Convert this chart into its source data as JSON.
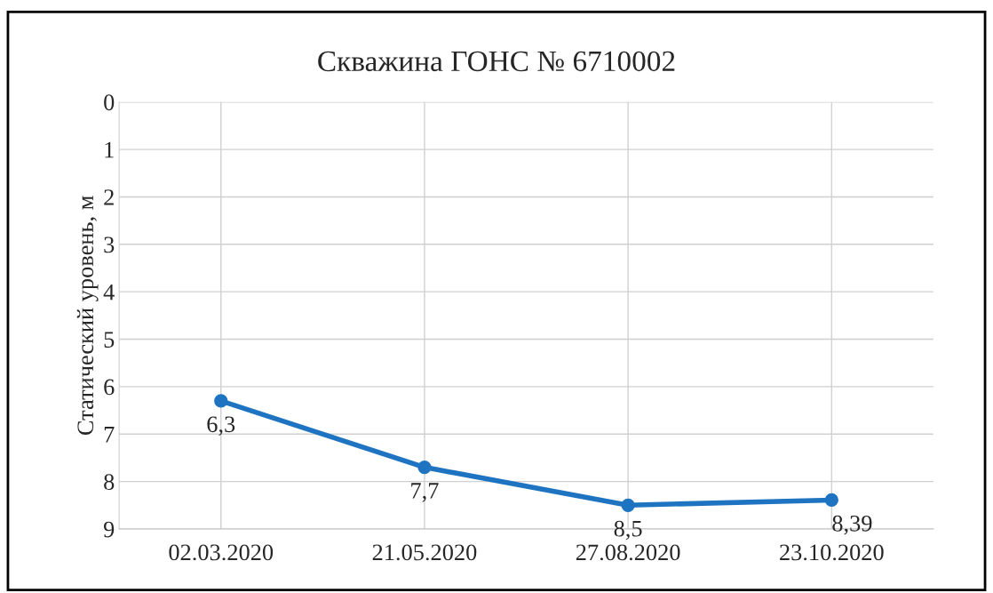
{
  "chart_data": {
    "type": "line",
    "title": "Скважина ГОНС № 6710002",
    "ylabel": "Статический уровень, м",
    "categories": [
      "02.03.2020",
      "21.05.2020",
      "27.08.2020",
      "23.10.2020"
    ],
    "series": [
      {
        "color": "#1f74c2",
        "values": [
          6.3,
          7.7,
          8.5,
          8.39
        ],
        "value_labels": [
          "6,3",
          "7,7",
          "8,5",
          "8,39"
        ]
      }
    ],
    "ylim": [
      9,
      0
    ],
    "yticks": [
      0,
      1,
      2,
      3,
      4,
      5,
      6,
      7,
      8,
      9
    ],
    "grid": true,
    "marker": "circle",
    "line_style": "solid"
  }
}
